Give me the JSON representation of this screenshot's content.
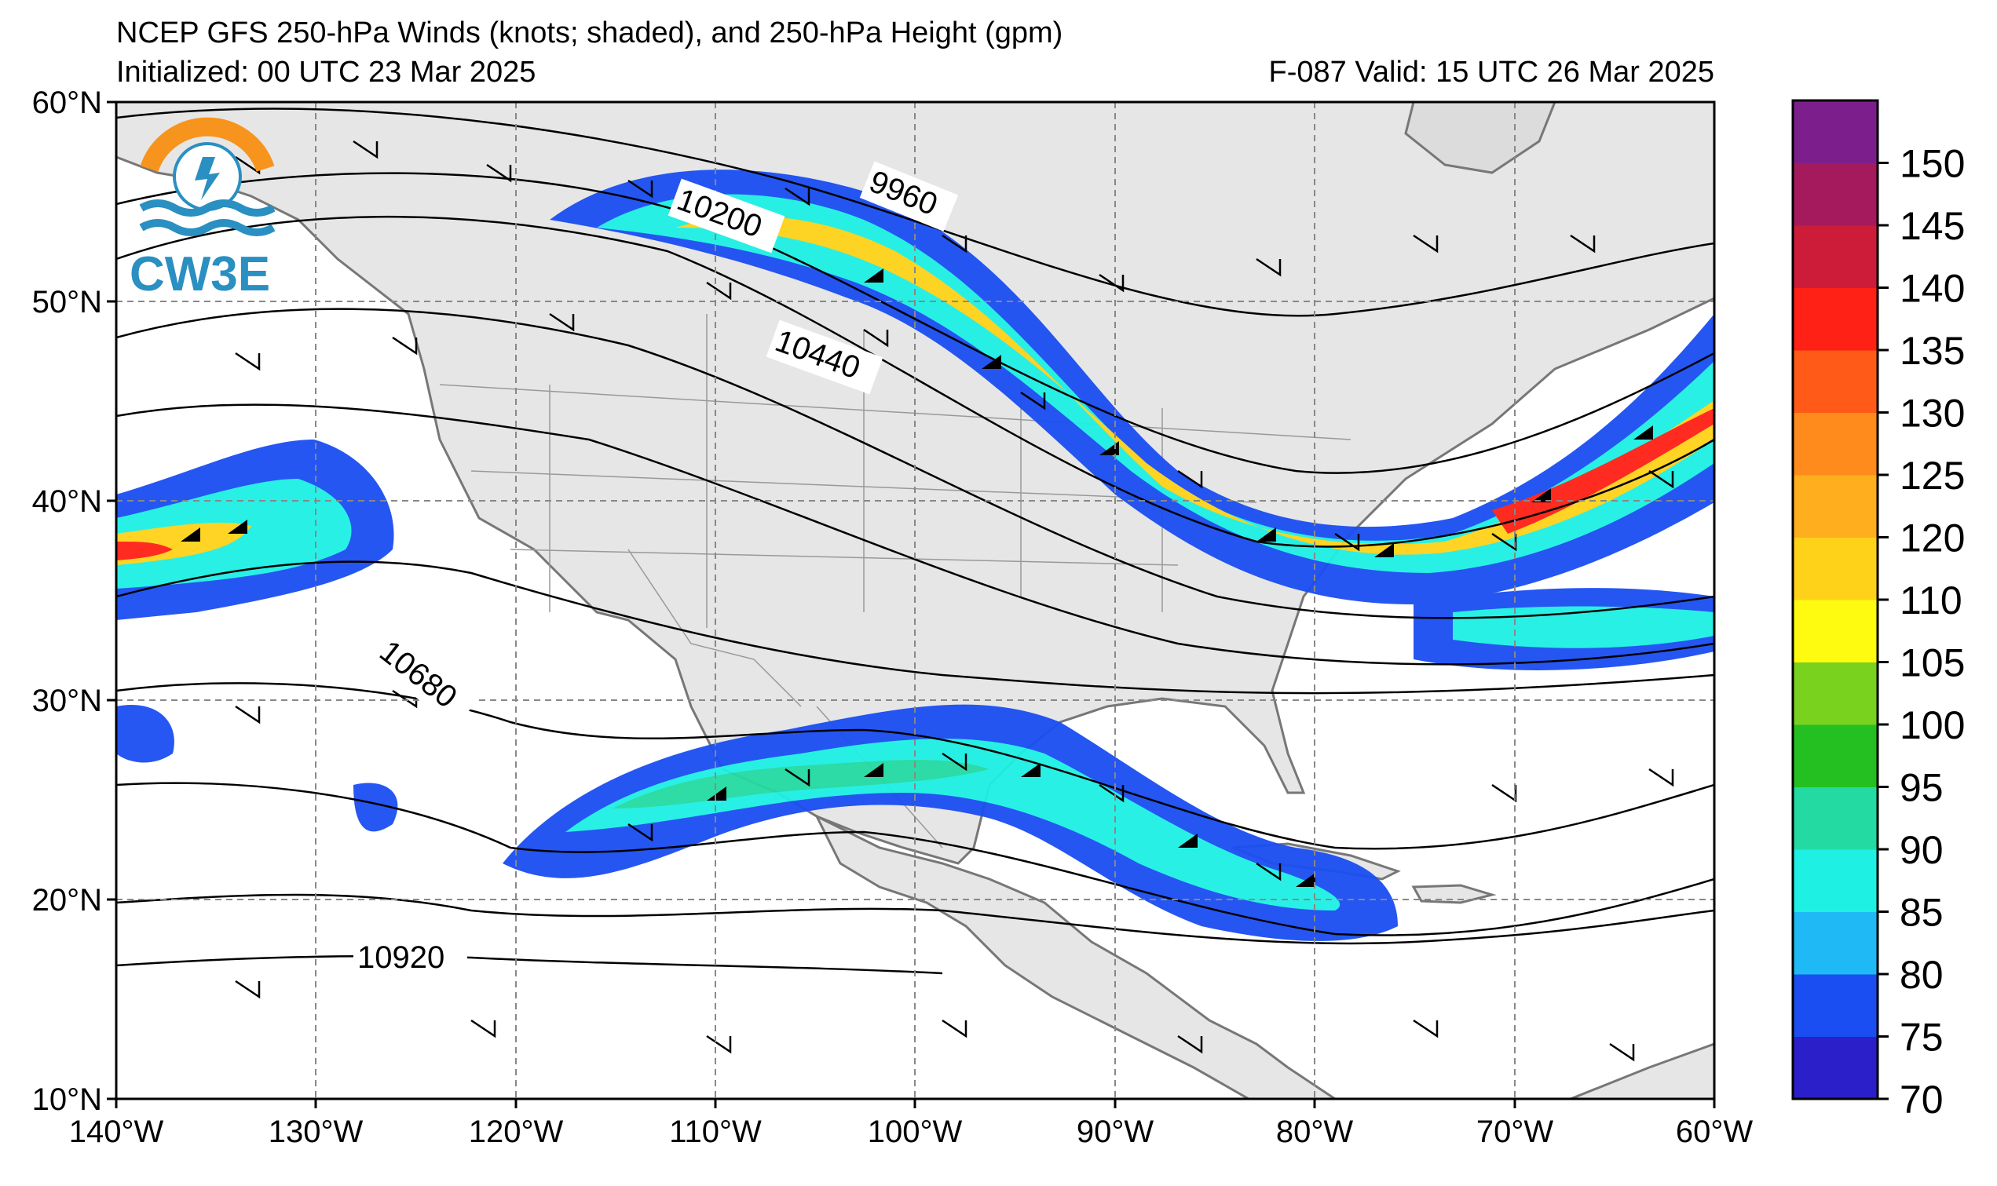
{
  "title": {
    "line1": "NCEP GFS 250-hPa Winds (knots; shaded), and 250-hPa Height (gpm)",
    "initialized": "Initialized: 00 UTC 23 Mar 2025",
    "valid": "F-087  Valid: 15 UTC 26 Mar 2025"
  },
  "logo": {
    "text": "CW3E",
    "colors": {
      "ring": "#f7941d",
      "waves": "#2a8fc1",
      "text": "#2a8fc1"
    }
  },
  "axes": {
    "lon_labels": [
      "140°W",
      "130°W",
      "120°W",
      "110°W",
      "100°W",
      "90°W",
      "80°W",
      "70°W",
      "60°W"
    ],
    "lat_labels": [
      "60°N",
      "50°N",
      "40°N",
      "30°N",
      "20°N",
      "10°N"
    ],
    "lon_range": [
      -140,
      -60
    ],
    "lat_range": [
      10,
      60
    ],
    "gridlines": "dashed"
  },
  "contours": {
    "labels": [
      "9960",
      "10200",
      "10440",
      "10680",
      "10920"
    ]
  },
  "colorbar": {
    "ticks": [
      "150",
      "145",
      "140",
      "135",
      "130",
      "125",
      "120",
      "110",
      "105",
      "100",
      "95",
      "90",
      "85",
      "80",
      "75",
      "70"
    ],
    "colors": [
      "#2a1fc9",
      "#1a4ef2",
      "#1fbaf5",
      "#1ef0e4",
      "#23dba2",
      "#24c021",
      "#78d21e",
      "#fffb10",
      "#ffd21a",
      "#ffae1e",
      "#ff8b1d",
      "#ff5a17",
      "#ff2016",
      "#cc1c3a",
      "#a41a5c",
      "#7c1f8c"
    ]
  }
}
